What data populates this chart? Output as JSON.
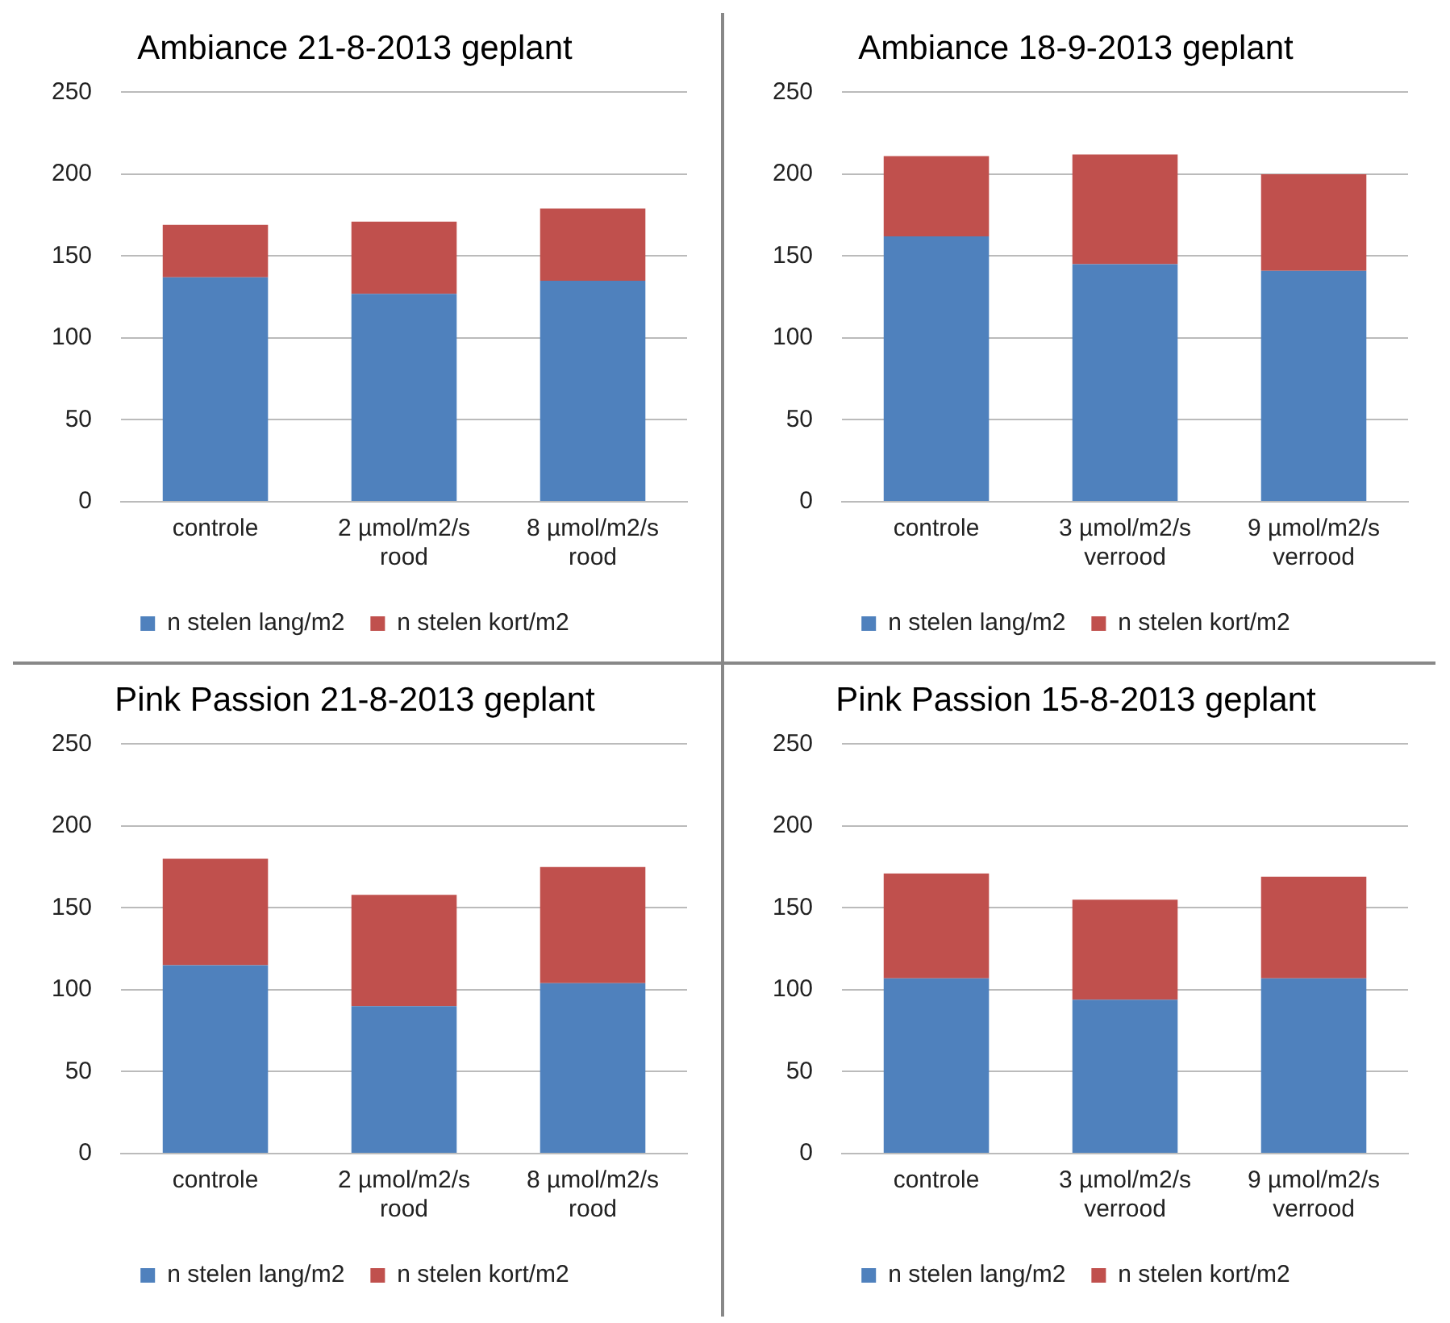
{
  "chart_data": [
    {
      "type": "bar",
      "title": "Ambiance 21-8-2013 geplant",
      "categories": [
        "controle",
        "2 µmol/m2/s rood",
        "8 µmol/m2/s rood"
      ],
      "stacked": true,
      "ylim": [
        0,
        250
      ],
      "yticks": [
        0,
        50,
        100,
        150,
        200,
        250
      ],
      "grid": "y",
      "legend": "bottom",
      "series": [
        {
          "name": "n stelen lang/m2",
          "color": "#4f81bd",
          "values": [
            137,
            127,
            135
          ]
        },
        {
          "name": "n stelen kort/m2",
          "color": "#c0504d",
          "values": [
            32,
            44,
            44
          ]
        }
      ]
    },
    {
      "type": "bar",
      "title": "Ambiance 18-9-2013 geplant",
      "categories": [
        "controle",
        "3 µmol/m2/s verrood",
        "9 µmol/m2/s verrood"
      ],
      "stacked": true,
      "ylim": [
        0,
        250
      ],
      "yticks": [
        0,
        50,
        100,
        150,
        200,
        250
      ],
      "grid": "y",
      "legend": "bottom",
      "series": [
        {
          "name": "n stelen lang/m2",
          "color": "#4f81bd",
          "values": [
            162,
            145,
            141
          ]
        },
        {
          "name": "n stelen kort/m2",
          "color": "#c0504d",
          "values": [
            49,
            67,
            59
          ]
        }
      ]
    },
    {
      "type": "bar",
      "title": "Pink Passion 21-8-2013 geplant",
      "categories": [
        "controle",
        "2 µmol/m2/s rood",
        "8 µmol/m2/s rood"
      ],
      "stacked": true,
      "ylim": [
        0,
        250
      ],
      "yticks": [
        0,
        50,
        100,
        150,
        200,
        250
      ],
      "grid": "y",
      "legend": "bottom",
      "series": [
        {
          "name": "n stelen lang/m2",
          "color": "#4f81bd",
          "values": [
            115,
            90,
            104
          ]
        },
        {
          "name": "n stelen kort/m2",
          "color": "#c0504d",
          "values": [
            65,
            68,
            71
          ]
        }
      ]
    },
    {
      "type": "bar",
      "title": "Pink Passion 15-8-2013 geplant",
      "categories": [
        "controle",
        "3 µmol/m2/s verrood",
        "9 µmol/m2/s verrood"
      ],
      "stacked": true,
      "ylim": [
        0,
        250
      ],
      "yticks": [
        0,
        50,
        100,
        150,
        200,
        250
      ],
      "grid": "y",
      "legend": "bottom",
      "series": [
        {
          "name": "n stelen lang/m2",
          "color": "#4f81bd",
          "values": [
            107,
            94,
            107
          ]
        },
        {
          "name": "n stelen kort/m2",
          "color": "#c0504d",
          "values": [
            64,
            61,
            62
          ]
        }
      ]
    }
  ]
}
